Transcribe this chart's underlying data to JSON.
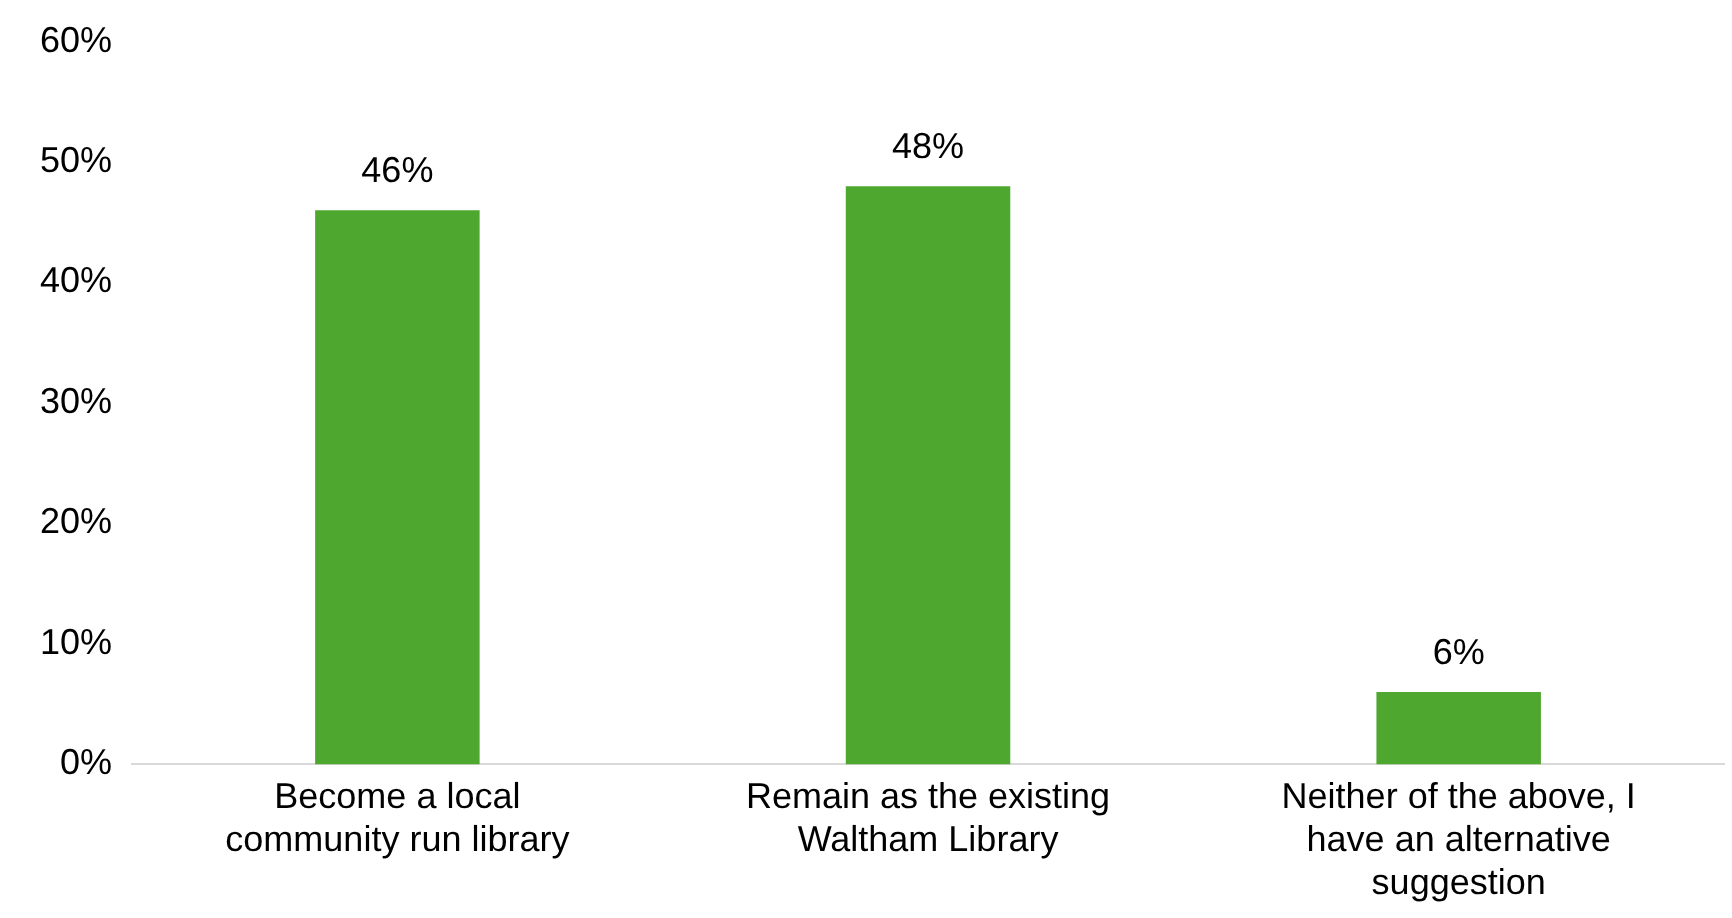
{
  "chart_data": {
    "type": "bar",
    "categories": [
      "Become a local community run library",
      "Remain as the existing Waltham Library",
      "Neither of the above, I have an alternative suggestion"
    ],
    "values": [
      46,
      48,
      6
    ],
    "value_labels": [
      "46%",
      "48%",
      "6%"
    ],
    "color": "#4ea72e",
    "ylim": [
      0,
      60
    ],
    "yticks": [
      {
        "value": 0,
        "label": "0%"
      },
      {
        "value": 10,
        "label": "10%"
      },
      {
        "value": 20,
        "label": "20%"
      },
      {
        "value": 30,
        "label": "30%"
      },
      {
        "value": 40,
        "label": "40%"
      },
      {
        "value": 50,
        "label": "50%"
      },
      {
        "value": 60,
        "label": "60%"
      }
    ],
    "grid": false,
    "legend": false
  }
}
